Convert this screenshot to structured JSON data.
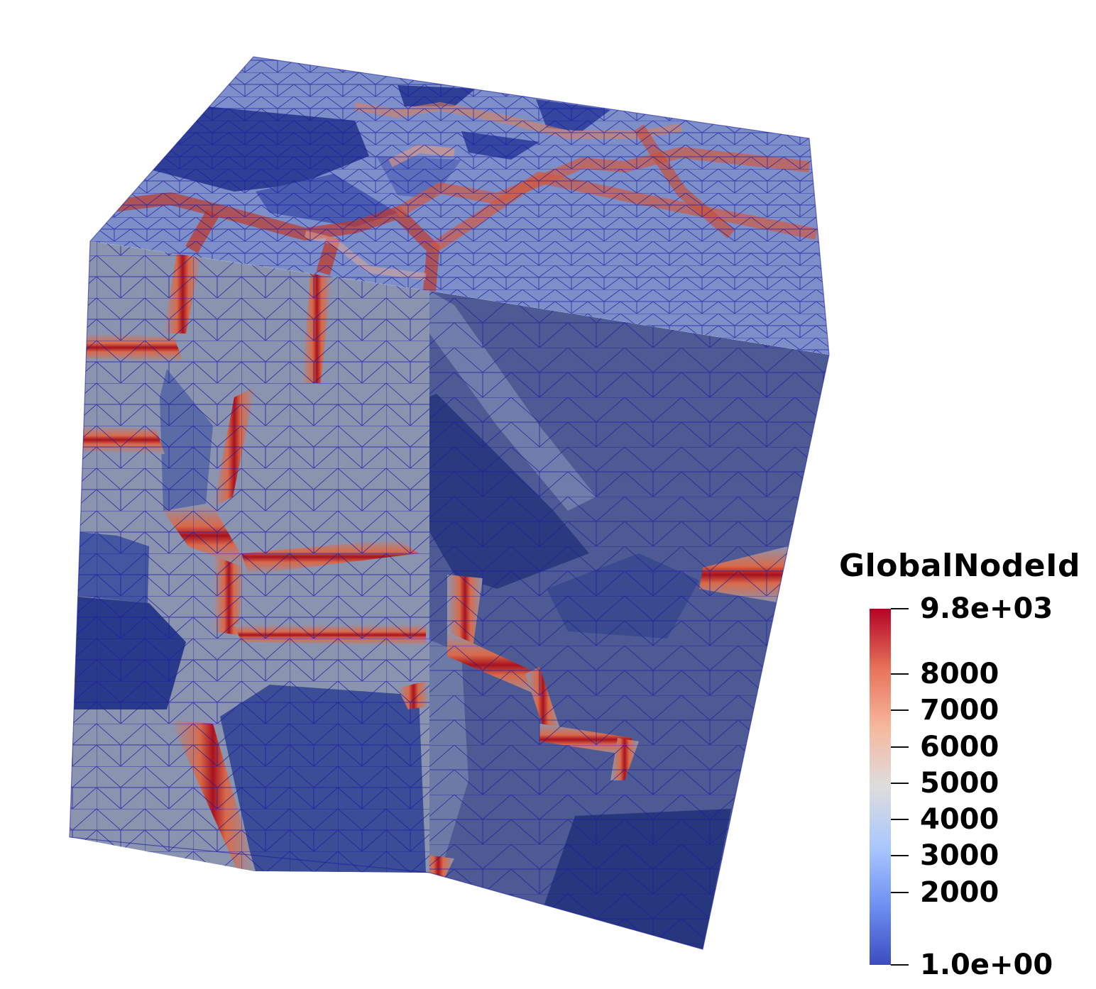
{
  "legend": {
    "title": "GlobalNodeId",
    "max_label": "9.8e+03",
    "min_label": "1.0e+00",
    "range": [
      1,
      9800
    ],
    "ticks": [
      {
        "value": 9800,
        "label": "9.8e+03"
      },
      {
        "value": 8000,
        "label": "8000"
      },
      {
        "value": 7000,
        "label": "7000"
      },
      {
        "value": 6000,
        "label": "6000"
      },
      {
        "value": 5000,
        "label": "5000"
      },
      {
        "value": 4000,
        "label": "4000"
      },
      {
        "value": 3000,
        "label": "3000"
      },
      {
        "value": 2000,
        "label": "2000"
      },
      {
        "value": 1,
        "label": "1.0e+00"
      }
    ],
    "colormap": [
      "#3b4cc0",
      "#6f91f2",
      "#aac7fd",
      "#dddddd",
      "#f6b79c",
      "#e7745b",
      "#b40426"
    ]
  },
  "colors": {
    "background": "#ffffff",
    "mesh_edge": "#1a1aa6",
    "low": "#2a3a8a",
    "mid": "#8c96b0",
    "high": "#b01a2a"
  }
}
